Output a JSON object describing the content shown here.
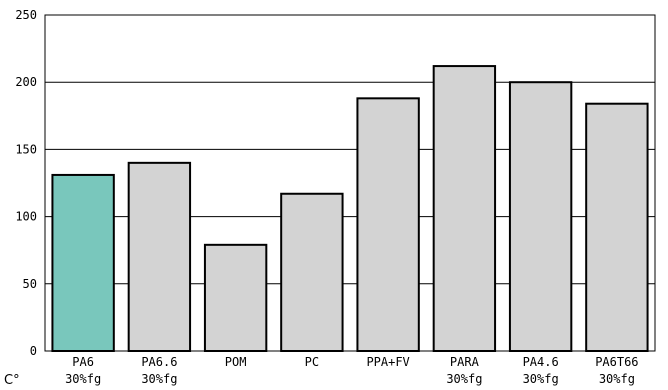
{
  "chart_data": {
    "type": "bar",
    "categories": [
      [
        "PA6",
        "30%fg"
      ],
      [
        "PA6.6",
        "30%fg"
      ],
      [
        "POM",
        ""
      ],
      [
        "PC",
        ""
      ],
      [
        "PPA+FV",
        ""
      ],
      [
        "PARA",
        "30%fg"
      ],
      [
        "PA4.6",
        "30%fg"
      ],
      [
        "PA6T66",
        "30%fg"
      ]
    ],
    "values": [
      131,
      140,
      79,
      117,
      188,
      212,
      200,
      184
    ],
    "highlight_index": 0,
    "colors": {
      "highlight": "#79c7bc",
      "bar": "#d3d3d3",
      "bar_stroke": "#000000",
      "grid": "#000000"
    },
    "ylim": [
      0,
      250
    ],
    "yticks": [
      0,
      50,
      100,
      150,
      200,
      250
    ],
    "unit_label": "C°",
    "grid": true,
    "title": "",
    "xlabel": "",
    "ylabel": ""
  }
}
